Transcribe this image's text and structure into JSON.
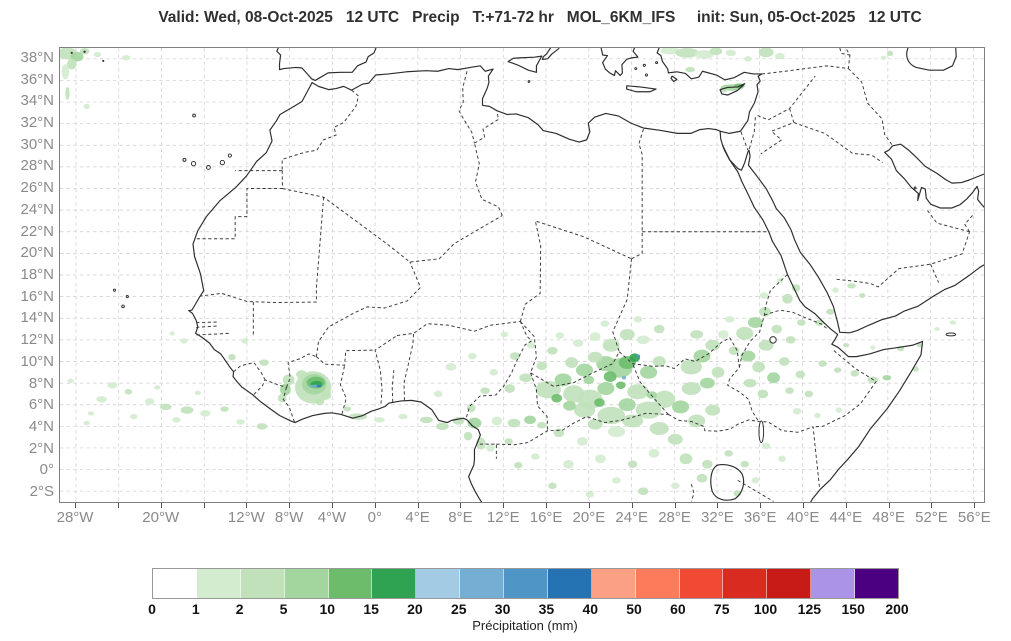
{
  "title": {
    "text": "Valid: Wed, 08-Oct-2025   12 UTC   Precip   T:+71-72 hr   MOL_6KM_IFS     init: Sun, 05-Oct-2025   12 UTC"
  },
  "axes": {
    "y_ticks": [
      {
        "label": "38°N",
        "lat": 38
      },
      {
        "label": "36°N",
        "lat": 36
      },
      {
        "label": "34°N",
        "lat": 34
      },
      {
        "label": "32°N",
        "lat": 32
      },
      {
        "label": "30°N",
        "lat": 30
      },
      {
        "label": "28°N",
        "lat": 28
      },
      {
        "label": "26°N",
        "lat": 26
      },
      {
        "label": "24°N",
        "lat": 24
      },
      {
        "label": "22°N",
        "lat": 22
      },
      {
        "label": "20°N",
        "lat": 20
      },
      {
        "label": "18°N",
        "lat": 18
      },
      {
        "label": "16°N",
        "lat": 16
      },
      {
        "label": "14°N",
        "lat": 14
      },
      {
        "label": "12°N",
        "lat": 12
      },
      {
        "label": "10°N",
        "lat": 10
      },
      {
        "label": "8°N",
        "lat": 8
      },
      {
        "label": "6°N",
        "lat": 6
      },
      {
        "label": "4°N",
        "lat": 4
      },
      {
        "label": "2°N",
        "lat": 2
      },
      {
        "label": "0°",
        "lat": 0
      },
      {
        "label": "2°S",
        "lat": -2
      }
    ],
    "x_ticks": [
      {
        "label": "28°W",
        "lon": -28
      },
      {
        "label": "20°W",
        "lon": -20
      },
      {
        "label": "12°W",
        "lon": -12
      },
      {
        "label": "8°W",
        "lon": -8
      },
      {
        "label": "4°W",
        "lon": -4
      },
      {
        "label": "0°",
        "lon": 0
      },
      {
        "label": "4°E",
        "lon": 4
      },
      {
        "label": "8°E",
        "lon": 8
      },
      {
        "label": "12°E",
        "lon": 12
      },
      {
        "label": "16°E",
        "lon": 16
      },
      {
        "label": "20°E",
        "lon": 20
      },
      {
        "label": "24°E",
        "lon": 24
      },
      {
        "label": "28°E",
        "lon": 28
      },
      {
        "label": "32°E",
        "lon": 32
      },
      {
        "label": "36°E",
        "lon": 36
      },
      {
        "label": "40°E",
        "lon": 40
      },
      {
        "label": "44°E",
        "lon": 44
      },
      {
        "label": "48°E",
        "lon": 48
      },
      {
        "label": "52°E",
        "lon": 52
      },
      {
        "label": "56°E",
        "lon": 56
      }
    ]
  },
  "colorbar": {
    "title": "Précipitation (mm)",
    "tick_labels": [
      "0",
      "1",
      "2",
      "5",
      "10",
      "15",
      "20",
      "25",
      "30",
      "35",
      "40",
      "50",
      "60",
      "75",
      "100",
      "125",
      "150",
      "200"
    ],
    "colors": [
      "#ffffff",
      "#d3ecd0",
      "#c1e1bb",
      "#a3d59e",
      "#6cbc6c",
      "#2fa351",
      "#a3cbe3",
      "#74afd3",
      "#4f96c7",
      "#2673b4",
      "#fba085",
      "#fb7b5b",
      "#f04a35",
      "#d92b20",
      "#c81a17",
      "#ab93e8",
      "#4b0082"
    ]
  },
  "precip_blobs": [
    [
      -28.8,
      38.5,
      0.9,
      0.55,
      2
    ],
    [
      -27.9,
      38.2,
      0.6,
      0.45,
      3
    ],
    [
      -28.4,
      37.5,
      0.45,
      0.5,
      2
    ],
    [
      -29.0,
      36.8,
      0.35,
      0.7,
      1
    ],
    [
      -27.2,
      38.7,
      0.45,
      0.3,
      2
    ],
    [
      -26.0,
      38.4,
      0.35,
      0.25,
      1
    ],
    [
      -23.3,
      38.1,
      0.4,
      0.25,
      1
    ],
    [
      -28.8,
      34.8,
      0.2,
      0.6,
      2
    ],
    [
      -27.0,
      33.6,
      0.3,
      0.25,
      1
    ],
    [
      27.6,
      38.75,
      0.9,
      0.35,
      1
    ],
    [
      29.2,
      38.55,
      1.1,
      0.45,
      2
    ],
    [
      30.8,
      38.4,
      0.9,
      0.4,
      1
    ],
    [
      31.9,
      38.7,
      0.6,
      0.35,
      2
    ],
    [
      33.3,
      38.55,
      0.5,
      0.3,
      1
    ],
    [
      36.6,
      38.6,
      0.7,
      0.45,
      2
    ],
    [
      37.9,
      38.25,
      0.45,
      0.3,
      1
    ],
    [
      34.9,
      38.0,
      0.35,
      0.25,
      1
    ],
    [
      29.5,
      37.0,
      0.45,
      0.25,
      2
    ],
    [
      33.4,
      35.35,
      1.05,
      0.3,
      3
    ],
    [
      34.1,
      35.5,
      0.5,
      0.22,
      4
    ],
    [
      32.6,
      35.1,
      0.4,
      0.2,
      2
    ],
    [
      48.2,
      38.5,
      0.3,
      0.25,
      2
    ],
    [
      47.6,
      38.1,
      0.25,
      0.2,
      1
    ],
    [
      -5.8,
      7.6,
      1.7,
      1.5,
      2
    ],
    [
      -5.7,
      7.9,
      1.15,
      0.95,
      3
    ],
    [
      -5.55,
      8.05,
      0.85,
      0.55,
      4
    ],
    [
      -5.5,
      7.9,
      0.55,
      0.3,
      5
    ],
    [
      -5.6,
      7.72,
      0.6,
      0.13,
      7
    ],
    [
      -5.25,
      7.72,
      0.22,
      0.1,
      9
    ],
    [
      -6.9,
      8.8,
      0.5,
      0.4,
      2
    ],
    [
      -4.6,
      6.9,
      0.5,
      0.45,
      2
    ],
    [
      -5.2,
      6.3,
      0.45,
      0.35,
      2
    ],
    [
      -8.1,
      8.3,
      0.55,
      0.5,
      2
    ],
    [
      -8.4,
      7.4,
      0.5,
      0.55,
      3
    ],
    [
      -8.7,
      6.6,
      0.4,
      0.4,
      2
    ],
    [
      -10.4,
      9.9,
      0.45,
      0.3,
      2
    ],
    [
      -13.4,
      10.4,
      0.35,
      0.3,
      2
    ],
    [
      -12.2,
      11.9,
      0.3,
      0.25,
      1
    ],
    [
      -24.6,
      7.8,
      0.45,
      0.3,
      1
    ],
    [
      -23.1,
      7.2,
      0.35,
      0.25,
      2
    ],
    [
      -25.6,
      6.5,
      0.5,
      0.3,
      1
    ],
    [
      -21.1,
      6.3,
      0.45,
      0.3,
      1
    ],
    [
      -19.6,
      5.8,
      0.55,
      0.3,
      2
    ],
    [
      -17.6,
      5.5,
      0.6,
      0.35,
      2
    ],
    [
      -15.9,
      5.2,
      0.5,
      0.3,
      1
    ],
    [
      -14.1,
      5.6,
      0.4,
      0.25,
      2
    ],
    [
      -26.6,
      5.2,
      0.3,
      0.2,
      1
    ],
    [
      -12.6,
      4.4,
      0.4,
      0.25,
      1
    ],
    [
      -10.6,
      4.0,
      0.5,
      0.3,
      2
    ],
    [
      -18.6,
      4.6,
      0.4,
      0.25,
      1
    ],
    [
      -22.6,
      4.9,
      0.35,
      0.25,
      1
    ],
    [
      -16.6,
      7.1,
      0.3,
      0.2,
      1
    ],
    [
      -20.4,
      7.6,
      0.3,
      0.2,
      1
    ],
    [
      -17.9,
      11.9,
      0.3,
      0.25,
      1
    ],
    [
      -19.0,
      12.6,
      0.25,
      0.2,
      1
    ],
    [
      -28.5,
      8.2,
      0.3,
      0.2,
      1
    ],
    [
      -27.0,
      4.3,
      0.3,
      0.2,
      1
    ],
    [
      -1.6,
      4.9,
      0.85,
      0.3,
      2
    ],
    [
      0.4,
      4.6,
      0.5,
      0.25,
      1
    ],
    [
      -2.6,
      5.6,
      0.35,
      0.22,
      2
    ],
    [
      2.6,
      4.9,
      0.45,
      0.25,
      1
    ],
    [
      4.8,
      4.6,
      0.6,
      0.3,
      2
    ],
    [
      6.3,
      4.0,
      0.6,
      0.35,
      2
    ],
    [
      7.8,
      4.5,
      0.55,
      0.35,
      2
    ],
    [
      9.3,
      4.3,
      0.65,
      0.5,
      3
    ],
    [
      9.0,
      5.7,
      0.4,
      0.4,
      2
    ],
    [
      8.7,
      3.1,
      0.4,
      0.4,
      2
    ],
    [
      9.9,
      2.4,
      0.45,
      0.55,
      2
    ],
    [
      11.4,
      4.5,
      0.5,
      0.4,
      1
    ],
    [
      13.0,
      4.3,
      0.6,
      0.4,
      2
    ],
    [
      14.5,
      4.6,
      0.55,
      0.4,
      3
    ],
    [
      15.6,
      4.1,
      0.45,
      0.3,
      2
    ],
    [
      10.8,
      2.0,
      0.4,
      0.35,
      1
    ],
    [
      12.5,
      2.6,
      0.4,
      0.3,
      2
    ],
    [
      16.2,
      7.4,
      1.2,
      0.8,
      2
    ],
    [
      17.6,
      8.3,
      0.8,
      0.6,
      3
    ],
    [
      18.6,
      7.0,
      1.0,
      0.8,
      2
    ],
    [
      20.1,
      6.5,
      1.2,
      0.9,
      2
    ],
    [
      21.6,
      7.5,
      0.8,
      0.6,
      3
    ],
    [
      19.6,
      5.5,
      1.0,
      0.7,
      2
    ],
    [
      22.1,
      5.0,
      1.3,
      0.8,
      2
    ],
    [
      23.6,
      6.0,
      0.8,
      0.6,
      3
    ],
    [
      24.6,
      7.2,
      1.0,
      0.7,
      2
    ],
    [
      25.6,
      5.5,
      1.2,
      0.8,
      2
    ],
    [
      27.1,
      6.5,
      1.0,
      0.8,
      2
    ],
    [
      28.6,
      5.8,
      0.8,
      0.6,
      3
    ],
    [
      24.1,
      4.5,
      1.0,
      0.6,
      2
    ],
    [
      26.6,
      3.8,
      0.9,
      0.6,
      2
    ],
    [
      28.1,
      2.8,
      0.7,
      0.5,
      2
    ],
    [
      22.6,
      3.5,
      0.8,
      0.5,
      1
    ],
    [
      20.6,
      4.2,
      0.7,
      0.5,
      2
    ],
    [
      30.1,
      4.5,
      0.8,
      0.6,
      2
    ],
    [
      31.6,
      5.5,
      0.7,
      0.5,
      2
    ],
    [
      29.6,
      7.5,
      0.9,
      0.6,
      2
    ],
    [
      18.2,
      5.9,
      0.6,
      0.45,
      3
    ],
    [
      17.0,
      6.6,
      0.5,
      0.4,
      4
    ],
    [
      21.0,
      6.2,
      0.5,
      0.4,
      4
    ],
    [
      23.0,
      7.8,
      0.45,
      0.35,
      4
    ],
    [
      25.9,
      6.9,
      0.5,
      0.35,
      3
    ],
    [
      22.9,
      9.4,
      1.2,
      0.9,
      3
    ],
    [
      23.6,
      9.9,
      0.8,
      0.6,
      4
    ],
    [
      24.3,
      10.35,
      0.5,
      0.4,
      5
    ],
    [
      24.65,
      10.5,
      0.16,
      0.14,
      8
    ],
    [
      21.6,
      9.8,
      0.9,
      0.7,
      3
    ],
    [
      20.6,
      10.4,
      0.7,
      0.5,
      2
    ],
    [
      19.6,
      9.2,
      0.8,
      0.6,
      3
    ],
    [
      18.4,
      9.9,
      0.6,
      0.5,
      2
    ],
    [
      25.6,
      9.0,
      0.8,
      0.6,
      3
    ],
    [
      26.6,
      10.0,
      0.6,
      0.5,
      2
    ],
    [
      23.3,
      8.5,
      0.2,
      0.17,
      7
    ],
    [
      22.0,
      8.6,
      0.6,
      0.5,
      4
    ],
    [
      20.0,
      8.3,
      0.5,
      0.4,
      3
    ],
    [
      22.1,
      11.5,
      0.8,
      0.6,
      2
    ],
    [
      23.6,
      12.5,
      0.7,
      0.5,
      2
    ],
    [
      25.1,
      12.0,
      0.6,
      0.4,
      1
    ],
    [
      20.6,
      12.3,
      0.5,
      0.4,
      1
    ],
    [
      26.6,
      13.0,
      0.5,
      0.4,
      2
    ],
    [
      24.6,
      13.9,
      0.4,
      0.3,
      1
    ],
    [
      21.5,
      13.5,
      0.4,
      0.3,
      1
    ],
    [
      19.0,
      11.7,
      0.5,
      0.35,
      1
    ],
    [
      17.3,
      12.4,
      0.4,
      0.3,
      1
    ],
    [
      7.1,
      9.5,
      0.5,
      0.35,
      1
    ],
    [
      9.1,
      10.5,
      0.4,
      0.3,
      1
    ],
    [
      11.1,
      9.0,
      0.4,
      0.3,
      1
    ],
    [
      13.1,
      10.5,
      0.5,
      0.35,
      2
    ],
    [
      14.6,
      11.5,
      0.4,
      0.3,
      1
    ],
    [
      12.1,
      12.5,
      0.35,
      0.25,
      1
    ],
    [
      10.3,
      7.3,
      0.45,
      0.3,
      2
    ],
    [
      12.6,
      7.5,
      0.5,
      0.4,
      2
    ],
    [
      14.1,
      8.5,
      0.6,
      0.4,
      2
    ],
    [
      15.6,
      9.6,
      0.5,
      0.4,
      2
    ],
    [
      16.6,
      11.0,
      0.5,
      0.35,
      2
    ],
    [
      5.9,
      7.0,
      0.4,
      0.3,
      1
    ],
    [
      29.6,
      9.5,
      1.0,
      0.7,
      2
    ],
    [
      30.6,
      10.5,
      0.8,
      0.6,
      3
    ],
    [
      31.6,
      11.5,
      0.7,
      0.5,
      2
    ],
    [
      30.1,
      12.5,
      0.6,
      0.4,
      2
    ],
    [
      32.1,
      9.0,
      0.6,
      0.5,
      2
    ],
    [
      31.1,
      8.0,
      0.7,
      0.5,
      3
    ],
    [
      32.6,
      12.5,
      0.5,
      0.4,
      1
    ],
    [
      33.6,
      11.0,
      0.5,
      0.4,
      2
    ],
    [
      34.6,
      12.6,
      0.8,
      0.6,
      2
    ],
    [
      35.6,
      13.6,
      0.7,
      0.5,
      3
    ],
    [
      36.5,
      14.6,
      0.55,
      0.45,
      2
    ],
    [
      34.9,
      10.5,
      0.7,
      0.5,
      3
    ],
    [
      35.9,
      9.5,
      0.6,
      0.5,
      2
    ],
    [
      36.6,
      11.5,
      0.7,
      0.5,
      2
    ],
    [
      37.6,
      13.0,
      0.5,
      0.4,
      2
    ],
    [
      35.1,
      8.0,
      0.6,
      0.4,
      2
    ],
    [
      36.3,
      7.0,
      0.5,
      0.4,
      2
    ],
    [
      37.3,
      8.5,
      0.6,
      0.5,
      3
    ],
    [
      38.3,
      10.0,
      0.5,
      0.4,
      2
    ],
    [
      33.2,
      13.9,
      0.45,
      0.3,
      1
    ],
    [
      36.4,
      16.1,
      0.4,
      0.3,
      1
    ],
    [
      38.6,
      15.8,
      0.5,
      0.45,
      2
    ],
    [
      39.4,
      16.8,
      0.4,
      0.35,
      2
    ],
    [
      37.9,
      17.5,
      0.3,
      0.25,
      1
    ],
    [
      39.9,
      13.6,
      0.4,
      0.3,
      2
    ],
    [
      38.9,
      12.0,
      0.45,
      0.35,
      2
    ],
    [
      39.8,
      8.8,
      0.45,
      0.35,
      2
    ],
    [
      38.8,
      7.3,
      0.4,
      0.3,
      2
    ],
    [
      40.6,
      7.0,
      0.4,
      0.3,
      2
    ],
    [
      41.9,
      9.8,
      0.4,
      0.3,
      2
    ],
    [
      43.3,
      9.2,
      0.35,
      0.25,
      2
    ],
    [
      44.9,
      8.9,
      0.4,
      0.3,
      2
    ],
    [
      46.6,
      8.3,
      0.5,
      0.3,
      2
    ],
    [
      47.9,
      8.5,
      0.4,
      0.25,
      3
    ],
    [
      39.5,
      5.4,
      0.4,
      0.3,
      1
    ],
    [
      41.4,
      5.0,
      0.3,
      0.25,
      1
    ],
    [
      43.4,
      5.5,
      0.3,
      0.25,
      1
    ],
    [
      49.2,
      11.2,
      0.35,
      0.25,
      2
    ],
    [
      50.6,
      9.3,
      0.3,
      0.25,
      2
    ],
    [
      51.0,
      11.5,
      0.3,
      0.2,
      2
    ],
    [
      29.1,
      1.0,
      0.6,
      0.5,
      2
    ],
    [
      31.1,
      0.5,
      0.5,
      0.4,
      2
    ],
    [
      26.1,
      1.5,
      0.5,
      0.4,
      1
    ],
    [
      24.1,
      0.5,
      0.45,
      0.35,
      2
    ],
    [
      21.1,
      1.0,
      0.5,
      0.4,
      1
    ],
    [
      33.1,
      1.5,
      0.4,
      0.3,
      2
    ],
    [
      30.6,
      -0.8,
      0.5,
      0.4,
      2
    ],
    [
      28.1,
      -1.5,
      0.4,
      0.3,
      1
    ],
    [
      25.1,
      -2.0,
      0.5,
      0.35,
      2
    ],
    [
      22.6,
      -1.0,
      0.4,
      0.3,
      1
    ],
    [
      18.1,
      0.5,
      0.5,
      0.4,
      1
    ],
    [
      16.6,
      -1.5,
      0.4,
      0.3,
      2
    ],
    [
      20.1,
      -2.3,
      0.4,
      0.3,
      1
    ],
    [
      34.6,
      0.5,
      0.4,
      0.3,
      2
    ],
    [
      35.6,
      -1.0,
      0.35,
      0.3,
      1
    ],
    [
      19.4,
      2.6,
      0.5,
      0.4,
      1
    ],
    [
      17.2,
      3.4,
      0.5,
      0.4,
      2
    ],
    [
      15.0,
      1.2,
      0.4,
      0.3,
      1
    ],
    [
      13.4,
      0.4,
      0.4,
      0.3,
      2
    ],
    [
      33.9,
      -2.2,
      0.35,
      0.3,
      2
    ],
    [
      36.6,
      2.2,
      0.4,
      0.3,
      1
    ],
    [
      38.1,
      1.0,
      0.35,
      0.3,
      1
    ],
    [
      41.6,
      13.6,
      0.4,
      0.3,
      2
    ],
    [
      42.6,
      14.6,
      0.38,
      0.28,
      2
    ],
    [
      43.1,
      16.6,
      0.3,
      0.25,
      1
    ],
    [
      44.6,
      17.0,
      0.4,
      0.25,
      2
    ],
    [
      45.6,
      16.1,
      0.3,
      0.22,
      2
    ],
    [
      44.1,
      11.5,
      0.3,
      0.2,
      2
    ],
    [
      46.6,
      11.3,
      0.25,
      0.2,
      1
    ],
    [
      52.6,
      13.0,
      0.25,
      0.18,
      1
    ],
    [
      54.1,
      13.6,
      0.3,
      0.2,
      1
    ]
  ]
}
